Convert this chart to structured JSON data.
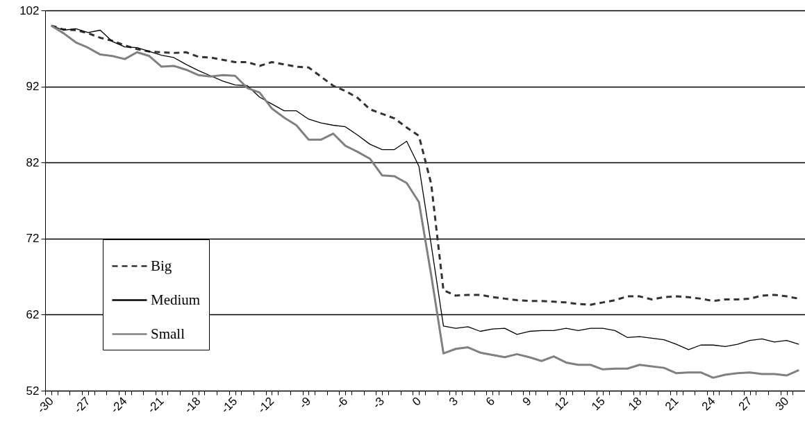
{
  "chart_data": {
    "type": "line",
    "x": [
      -30,
      -29,
      -28,
      -27,
      -26,
      -25,
      -24,
      -23,
      -22,
      -21,
      -20,
      -19,
      -18,
      -17,
      -16,
      -15,
      -14,
      -13,
      -12,
      -11,
      -10,
      -9,
      -8,
      -7,
      -6,
      -5,
      -4,
      -3,
      -2,
      -1,
      0,
      1,
      2,
      3,
      4,
      5,
      6,
      7,
      8,
      9,
      10,
      11,
      12,
      13,
      14,
      15,
      16,
      17,
      18,
      19,
      20,
      21,
      22,
      23,
      24,
      25,
      26,
      27,
      28,
      29,
      30,
      31
    ],
    "series": [
      {
        "name": "Big",
        "color": "#333333",
        "line_style": "dashed",
        "values": [
          100,
          99.5,
          99.4,
          99.0,
          98.4,
          98.0,
          97.4,
          96.9,
          96.6,
          96.5,
          96.4,
          96.5,
          95.9,
          95.8,
          95.5,
          95.2,
          95.2,
          94.7,
          95.2,
          94.9,
          94.6,
          94.5,
          93.3,
          92.1,
          91.4,
          90.5,
          89.0,
          88.4,
          87.8,
          86.6,
          85.5,
          79.2,
          65.2,
          64.5,
          64.6,
          64.6,
          64.3,
          64.1,
          63.9,
          63.8,
          63.8,
          63.7,
          63.6,
          63.4,
          63.3,
          63.6,
          63.9,
          64.4,
          64.4,
          64.0,
          64.3,
          64.4,
          64.3,
          64.1,
          63.8,
          64.0,
          64.0,
          64.1,
          64.5,
          64.6,
          64.4,
          64.1
        ]
      },
      {
        "name": "Medium",
        "color": "#000000",
        "line_style": "solid",
        "values": [
          100,
          99.4,
          99.6,
          99.1,
          99.4,
          97.9,
          97.2,
          97.1,
          96.6,
          96.1,
          95.8,
          94.9,
          94.1,
          93.4,
          92.7,
          92.2,
          92.1,
          90.6,
          89.7,
          88.8,
          88.8,
          87.7,
          87.2,
          86.9,
          86.7,
          85.6,
          84.4,
          83.7,
          83.7,
          84.8,
          81.5,
          71.2,
          60.5,
          60.2,
          60.4,
          59.8,
          60.1,
          60.2,
          59.4,
          59.8,
          59.9,
          59.9,
          60.2,
          59.9,
          60.2,
          60.2,
          59.9,
          59.0,
          59.1,
          58.9,
          58.7,
          58.1,
          57.4,
          58.0,
          58.0,
          57.8,
          58.1,
          58.6,
          58.8,
          58.4,
          58.6,
          58.1
        ]
      },
      {
        "name": "Small",
        "color": "#808080",
        "line_style": "solid",
        "values": [
          100,
          99.0,
          97.8,
          97.1,
          96.2,
          96.0,
          95.6,
          96.5,
          96.0,
          94.6,
          94.7,
          94.2,
          93.5,
          93.3,
          93.5,
          93.4,
          91.8,
          91.2,
          89.1,
          87.9,
          86.9,
          85.0,
          85.0,
          85.8,
          84.2,
          83.4,
          82.5,
          80.3,
          80.2,
          79.3,
          76.8,
          67.2,
          56.9,
          57.5,
          57.7,
          57.0,
          56.7,
          56.4,
          56.8,
          56.4,
          55.9,
          56.5,
          55.7,
          55.4,
          55.4,
          54.8,
          54.9,
          54.9,
          55.4,
          55.2,
          55.0,
          54.3,
          54.4,
          54.4,
          53.7,
          54.1,
          54.3,
          54.4,
          54.2,
          54.2,
          54.0,
          54.7
        ]
      }
    ],
    "xlim": [
      -30.5,
      31.5
    ],
    "xticks": [
      -30,
      -27,
      -24,
      -21,
      -18,
      -15,
      -12,
      -9,
      -6,
      -3,
      0,
      3,
      6,
      9,
      12,
      15,
      18,
      21,
      24,
      27,
      30,
      {
        "value": -30.5,
        "label": null
      },
      {
        "value": -29.5,
        "label": null
      },
      {
        "value": -28.5,
        "label": null
      },
      {
        "value": -27.5,
        "label": null
      },
      {
        "value": -26.5,
        "label": null
      },
      {
        "value": -25.5,
        "label": null
      },
      {
        "value": -24.5,
        "label": null
      },
      {
        "value": -23.5,
        "label": null
      },
      {
        "value": -22.5,
        "label": null
      },
      {
        "value": -21.5,
        "label": null
      },
      {
        "value": -20.5,
        "label": null
      },
      {
        "value": -19.5,
        "label": null
      },
      {
        "value": -18.5,
        "label": null
      },
      {
        "value": -17.5,
        "label": null
      },
      {
        "value": -16.5,
        "label": null
      },
      {
        "value": -15.5,
        "label": null
      },
      {
        "value": -14.5,
        "label": null
      },
      {
        "value": -13.5,
        "label": null
      },
      {
        "value": -12.5,
        "label": null
      },
      {
        "value": -11.5,
        "label": null
      },
      {
        "value": -10.5,
        "label": null
      },
      {
        "value": -9.5,
        "label": null
      },
      {
        "value": -8.5,
        "label": null
      },
      {
        "value": -7.5,
        "label": null
      },
      {
        "value": -6.5,
        "label": null
      },
      {
        "value": -5.5,
        "label": null
      },
      {
        "value": -4.5,
        "label": null
      },
      {
        "value": -3.5,
        "label": null
      },
      {
        "value": -2.5,
        "label": null
      },
      {
        "value": -1.5,
        "label": null
      },
      {
        "value": -0.5,
        "label": null
      },
      {
        "value": 0.5,
        "label": null
      },
      {
        "value": 1.5,
        "label": null
      },
      {
        "value": 2.5,
        "label": null
      },
      {
        "value": 3.5,
        "label": null
      },
      {
        "value": 4.5,
        "label": null
      },
      {
        "value": 5.5,
        "label": null
      },
      {
        "value": 6.5,
        "label": null
      },
      {
        "value": 7.5,
        "label": null
      },
      {
        "value": 8.5,
        "label": null
      },
      {
        "value": 9.5,
        "label": null
      },
      {
        "value": 10.5,
        "label": null
      },
      {
        "value": 11.5,
        "label": null
      },
      {
        "value": 12.5,
        "label": null
      },
      {
        "value": 13.5,
        "label": null
      },
      {
        "value": 14.5,
        "label": null
      },
      {
        "value": 15.5,
        "label": null
      },
      {
        "value": 16.5,
        "label": null
      },
      {
        "value": 17.5,
        "label": null
      },
      {
        "value": 18.5,
        "label": null
      },
      {
        "value": 19.5,
        "label": null
      },
      {
        "value": 20.5,
        "label": null
      },
      {
        "value": 21.5,
        "label": null
      },
      {
        "value": 22.5,
        "label": null
      },
      {
        "value": 23.5,
        "label": null
      },
      {
        "value": 24.5,
        "label": null
      },
      {
        "value": 25.5,
        "label": null
      },
      {
        "value": 26.5,
        "label": null
      },
      {
        "value": 27.5,
        "label": null
      },
      {
        "value": 28.5,
        "label": null
      },
      {
        "value": 29.5,
        "label": null
      },
      {
        "value": 30.5,
        "label": null
      },
      {
        "value": 31.5,
        "label": null
      }
    ],
    "ylim": [
      52,
      102
    ],
    "yticks": [
      52,
      62,
      72,
      82,
      92,
      102
    ],
    "grid": "y",
    "legend": "left",
    "marker": "none"
  }
}
